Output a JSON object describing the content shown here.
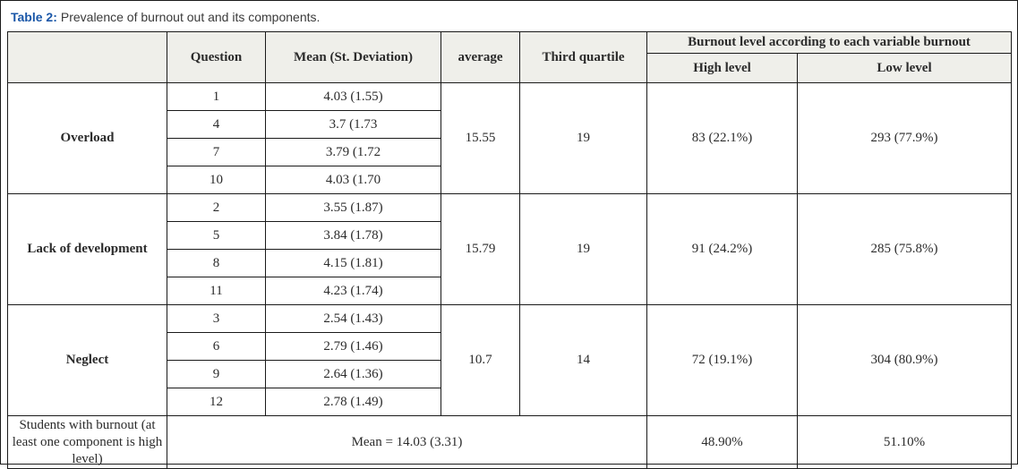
{
  "title": {
    "label": "Table 2:",
    "text": "Prevalence of burnout out and its components."
  },
  "colors": {
    "title_accent": "#1a57a8",
    "header_bg": "#efefea",
    "border": "#1a1a1a",
    "text": "#2b2b2b"
  },
  "table": {
    "headers": {
      "component": "",
      "question": "Question",
      "mean": "Mean (St. Deviation)",
      "average": "average",
      "third_quartile": "Third quartile",
      "burnout_group": "Burnout level according to each variable burnout",
      "high_level": "High level",
      "low_level": "Low level"
    },
    "groups": [
      {
        "component": "Overload",
        "rows": [
          {
            "question": "1",
            "mean": "4.03 (1.55)"
          },
          {
            "question": "4",
            "mean": "3.7 (1.73"
          },
          {
            "question": "7",
            "mean": "3.79 (1.72"
          },
          {
            "question": "10",
            "mean": "4.03 (1.70"
          }
        ],
        "average": "15.55",
        "third_quartile": "19",
        "high": "83 (22.1%)",
        "low": "293 (77.9%)"
      },
      {
        "component": "Lack of development",
        "rows": [
          {
            "question": "2",
            "mean": "3.55 (1.87)"
          },
          {
            "question": "5",
            "mean": "3.84 (1.78)"
          },
          {
            "question": "8",
            "mean": "4.15 (1.81)"
          },
          {
            "question": "11",
            "mean": "4.23 (1.74)"
          }
        ],
        "average": "15.79",
        "third_quartile": "19",
        "high": "91 (24.2%)",
        "low": "285 (75.8%)"
      },
      {
        "component": "Neglect",
        "rows": [
          {
            "question": "3",
            "mean": "2.54 (1.43)"
          },
          {
            "question": "6",
            "mean": "2.79 (1.46)"
          },
          {
            "question": "9",
            "mean": "2.64 (1.36)"
          },
          {
            "question": "12",
            "mean": "2.78 (1.49)"
          }
        ],
        "average": "10.7",
        "third_quartile": "14",
        "high": "72 (19.1%)",
        "low": "304 (80.9%)"
      }
    ],
    "summary": {
      "label": "Students with burnout (at least one component is high level)",
      "mean": "Mean = 14.03 (3.31)",
      "high": "48.90%",
      "low": "51.10%"
    }
  }
}
